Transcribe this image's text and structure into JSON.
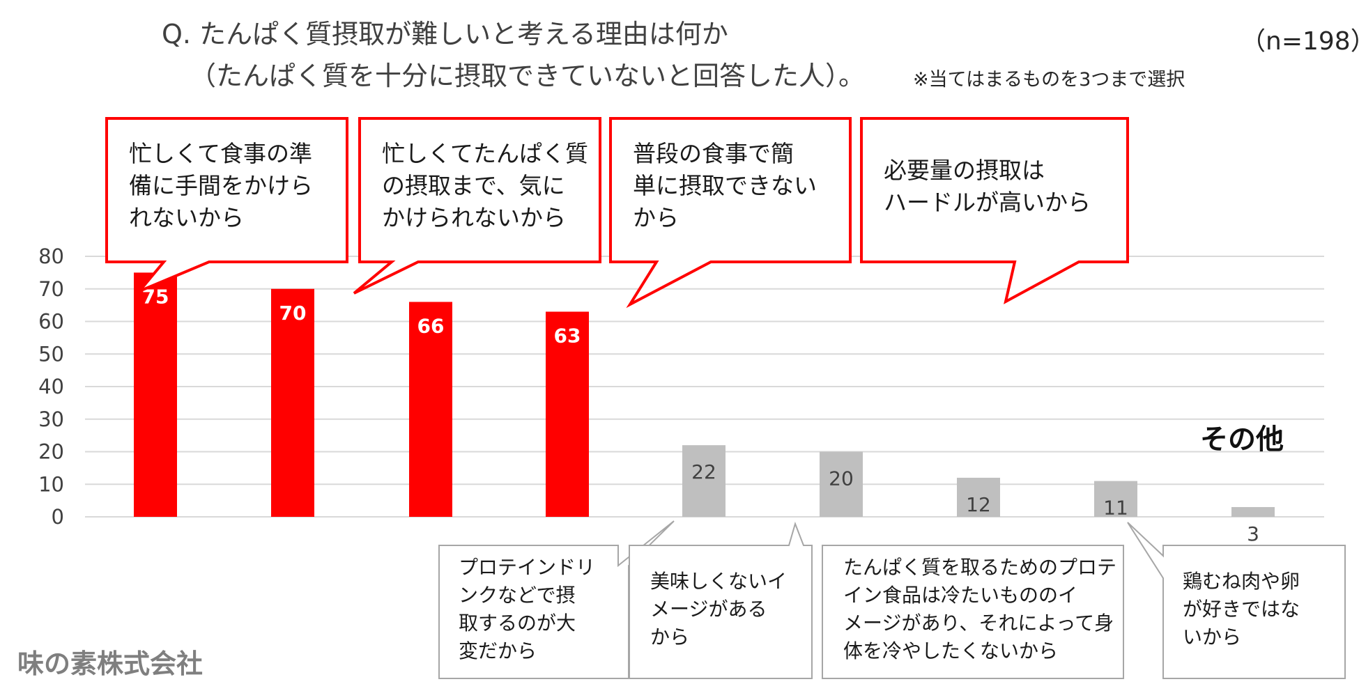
{
  "header": {
    "question_line1": "Q. たんぱく質摂取が難しいと考える理由は何か",
    "question_line2": "（たんぱく質を十分に摂取できていないと回答した人）。",
    "note": "※当てはまるものを3つまで選択",
    "sample_size": "（n=198）"
  },
  "chart_data": {
    "type": "bar",
    "categories": [
      "忙しくて食事の準備に手間をかけられないから",
      "忙しくてたんぱく質の摂取まで、気にかけられないから",
      "普段の食事で簡単に摂取できないから",
      "必要量の摂取はハードルが高いから",
      "プロテインドリンクなどで摂取するのが大変だから",
      "美味しくないイメージがあるから",
      "たんぱく質を取るためのプロテイン食品は冷たいもののイメージがあり、それによって身体を冷やしたくないから",
      "鶏むね肉や卵が好きではないから",
      "その他"
    ],
    "values": [
      75,
      70,
      66,
      63,
      22,
      20,
      12,
      11,
      3
    ],
    "ylim": [
      0,
      80
    ],
    "yticks": [
      "0",
      "10",
      "20",
      "30",
      "40",
      "50",
      "60",
      "70",
      "80"
    ],
    "value_labels": [
      "75",
      "70",
      "66",
      "63",
      "22",
      "20",
      "12",
      "11",
      "3"
    ],
    "grid": true,
    "colors": {
      "highlight": "#ff0000",
      "other": "#bfbfbf",
      "grid": "#d9d9d9",
      "callout_border": "#ff0000",
      "gray_box_border": "#a6a6a6"
    }
  },
  "callouts_red": [
    {
      "lines": [
        "忙しくて食事の準",
        "備に手間をかけら",
        "れないから"
      ]
    },
    {
      "lines": [
        "忙しくてたんぱく質",
        "の摂取まで、気に",
        "かけられないから"
      ]
    },
    {
      "lines": [
        "普段の食事で簡",
        "単に摂取できない",
        "から"
      ]
    },
    {
      "lines": [
        "必要量の摂取は",
        "ハードルが高いから"
      ]
    }
  ],
  "callouts_gray": [
    {
      "lines": [
        "プロテインドリ",
        "ンクなどで摂",
        "取するのが大",
        "変だから"
      ]
    },
    {
      "lines": [
        "美味しくないイ",
        "メージがある",
        "から"
      ]
    },
    {
      "lines": [
        "たんぱく質を取るためのプロテ",
        "イン食品は冷たいもののイ",
        "メージがあり、それによって身",
        "体を冷やしたくないから"
      ]
    },
    {
      "lines": [
        "鶏むね肉や卵",
        "が好きではな",
        "いから"
      ]
    }
  ],
  "other_label": "その他",
  "company": "味の素株式会社"
}
